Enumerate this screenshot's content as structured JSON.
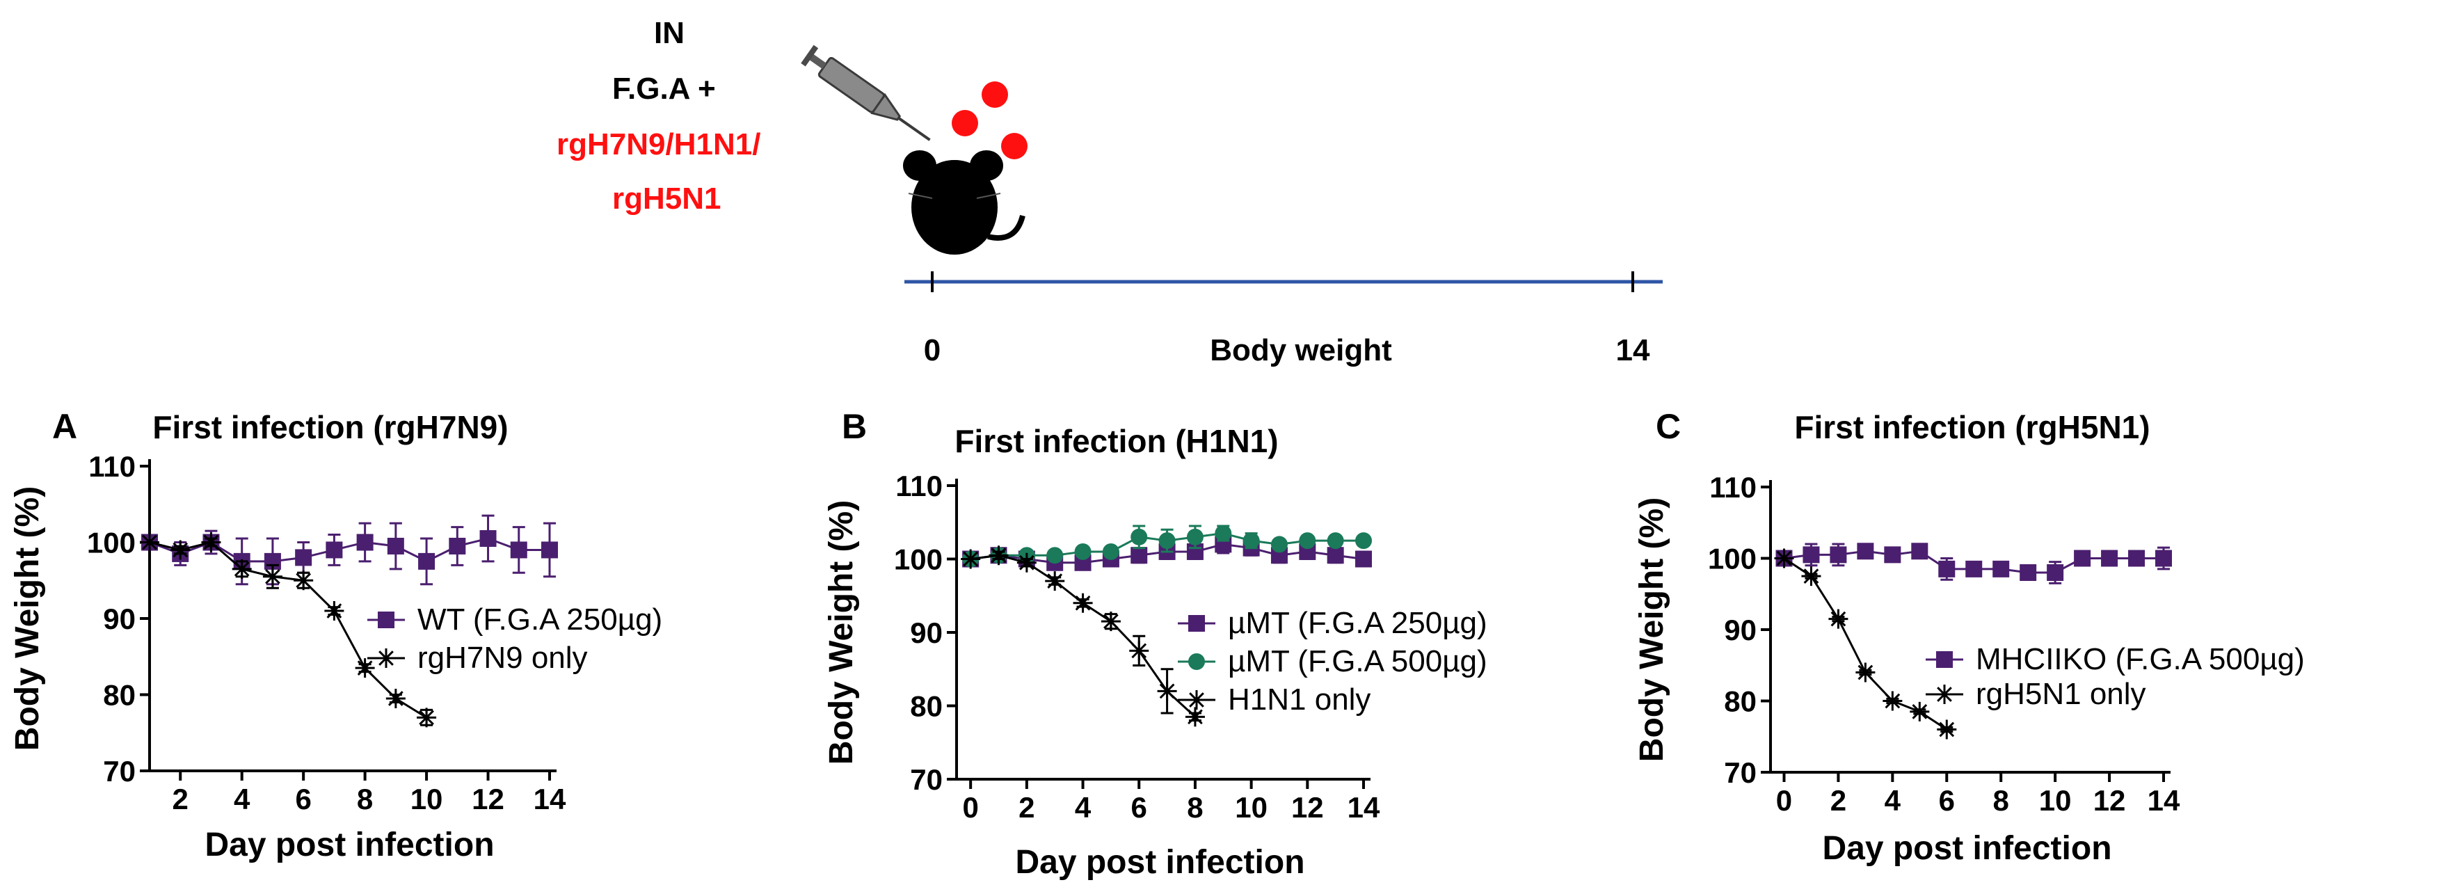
{
  "schematic": {
    "route": "IN",
    "treatment": "F.G.A +",
    "virus_line1": "rgH7N9/H1N1/",
    "virus_line2": "rgH5N1",
    "timeline_start": "0",
    "timeline_end": "14",
    "timeline_label": "Body weight",
    "colors": {
      "virus": "#ff1010",
      "timeline": "#2f56a6",
      "text": "#000000"
    }
  },
  "chart_data": [
    {
      "type": "line",
      "panel_letter": "A",
      "title": "First infection (rgH7N9)",
      "xlabel": "Day post infection",
      "ylabel": "Body Weight (%)",
      "xlim": [
        1,
        14
      ],
      "ylim": [
        70,
        110
      ],
      "xticks": [
        2,
        4,
        6,
        8,
        10,
        12,
        14
      ],
      "yticks": [
        70,
        80,
        90,
        100,
        110
      ],
      "legend_position": "right",
      "series": [
        {
          "name": "WT (F.G.A 250µg)",
          "marker": "square",
          "color": "#4b1f6f",
          "x": [
            1,
            2,
            3,
            4,
            5,
            6,
            7,
            8,
            9,
            10,
            11,
            12,
            13,
            14
          ],
          "y": [
            100,
            98.5,
            100,
            97.5,
            97.5,
            98,
            99,
            100,
            99.5,
            97.5,
            99.5,
            100.5,
            99,
            99
          ],
          "err": [
            0.5,
            1.5,
            1.5,
            3,
            3,
            2,
            2,
            2.5,
            3,
            3,
            2.5,
            3,
            3,
            3.5
          ]
        },
        {
          "name": "rgH7N9 only",
          "marker": "asterisk",
          "color": "#000000",
          "x": [
            1,
            2,
            3,
            4,
            5,
            6,
            7,
            8,
            9,
            10
          ],
          "y": [
            100,
            99,
            100,
            96.5,
            95.5,
            95,
            91,
            83.5,
            79.5,
            77
          ],
          "err": [
            0,
            0.5,
            0.5,
            1,
            1.5,
            1,
            0.5,
            0.5,
            0.5,
            1
          ]
        }
      ]
    },
    {
      "type": "line",
      "panel_letter": "B",
      "title": "First infection (H1N1)",
      "xlabel": "Day post infection",
      "ylabel": "Body Weight (%)",
      "xlim": [
        -0.5,
        14
      ],
      "ylim": [
        70,
        110
      ],
      "xticks": [
        0,
        2,
        4,
        6,
        8,
        10,
        12,
        14
      ],
      "yticks": [
        70,
        80,
        90,
        100,
        110
      ],
      "legend_position": "right",
      "series": [
        {
          "name": "µMT (F.G.A 250µg)",
          "marker": "square",
          "color": "#4b1f6f",
          "x": [
            0,
            1,
            2,
            3,
            4,
            5,
            6,
            7,
            8,
            9,
            10,
            11,
            12,
            13,
            14
          ],
          "y": [
            100,
            100.5,
            100,
            99.5,
            99.5,
            100,
            100.5,
            101,
            101,
            102,
            101.5,
            100.5,
            101,
            100.5,
            100
          ],
          "err": [
            0.5,
            0.5,
            0.5,
            0.5,
            0.8,
            1,
            1,
            1,
            1,
            1.2,
            1,
            1,
            1,
            1,
            1
          ]
        },
        {
          "name": "µMT (F.G.A 500µg)",
          "marker": "circle",
          "color": "#1a7a5a",
          "x": [
            0,
            1,
            2,
            3,
            4,
            5,
            6,
            7,
            8,
            9,
            10,
            11,
            12,
            13,
            14
          ],
          "y": [
            100,
            100.5,
            100.5,
            100.5,
            101,
            101,
            103,
            102.5,
            103,
            103.5,
            102.5,
            102,
            102.5,
            102.5,
            102.5
          ],
          "err": [
            0.5,
            0.5,
            0.5,
            0.5,
            0.5,
            0.5,
            1.5,
            1.5,
            1.5,
            1,
            1,
            0.5,
            0.5,
            0.5,
            0.5
          ]
        },
        {
          "name": "H1N1 only",
          "marker": "asterisk",
          "color": "#000000",
          "x": [
            0,
            1,
            2,
            3,
            4,
            5,
            6,
            7,
            8
          ],
          "y": [
            100,
            100.5,
            99.5,
            97,
            94,
            91.5,
            87.5,
            82,
            78.5
          ],
          "err": [
            0,
            0.5,
            0.5,
            0.5,
            0.5,
            1,
            2,
            3,
            0.5
          ]
        }
      ]
    },
    {
      "type": "line",
      "panel_letter": "C",
      "title": "First infection (rgH5N1)",
      "xlabel": "Day post infection",
      "ylabel": "Body Weight (%)",
      "xlim": [
        -0.5,
        14
      ],
      "ylim": [
        70,
        110
      ],
      "xticks": [
        0,
        2,
        4,
        6,
        8,
        10,
        12,
        14
      ],
      "yticks": [
        70,
        80,
        90,
        100,
        110
      ],
      "legend_position": "right",
      "series": [
        {
          "name": "MHCIIKO (F.G.A 500µg)",
          "marker": "square",
          "color": "#4b1f6f",
          "x": [
            0,
            1,
            2,
            3,
            4,
            5,
            6,
            7,
            8,
            9,
            10,
            11,
            12,
            13,
            14
          ],
          "y": [
            100,
            100.5,
            100.5,
            101,
            100.5,
            101,
            98.5,
            98.5,
            98.5,
            98,
            98,
            100,
            100,
            100,
            100
          ],
          "err": [
            0.5,
            1.5,
            1.5,
            0.5,
            0.5,
            0.5,
            1.5,
            0.5,
            0.5,
            1,
            1.5,
            1,
            1,
            1,
            1.5
          ]
        },
        {
          "name": "rgH5N1 only",
          "marker": "asterisk",
          "color": "#000000",
          "x": [
            0,
            1,
            2,
            3,
            4,
            5,
            6
          ],
          "y": [
            100,
            97.5,
            91.5,
            84,
            80,
            78.5,
            76
          ],
          "err": [
            0,
            0.3,
            0.3,
            0.3,
            0.3,
            0.3,
            0.3
          ]
        }
      ]
    }
  ]
}
